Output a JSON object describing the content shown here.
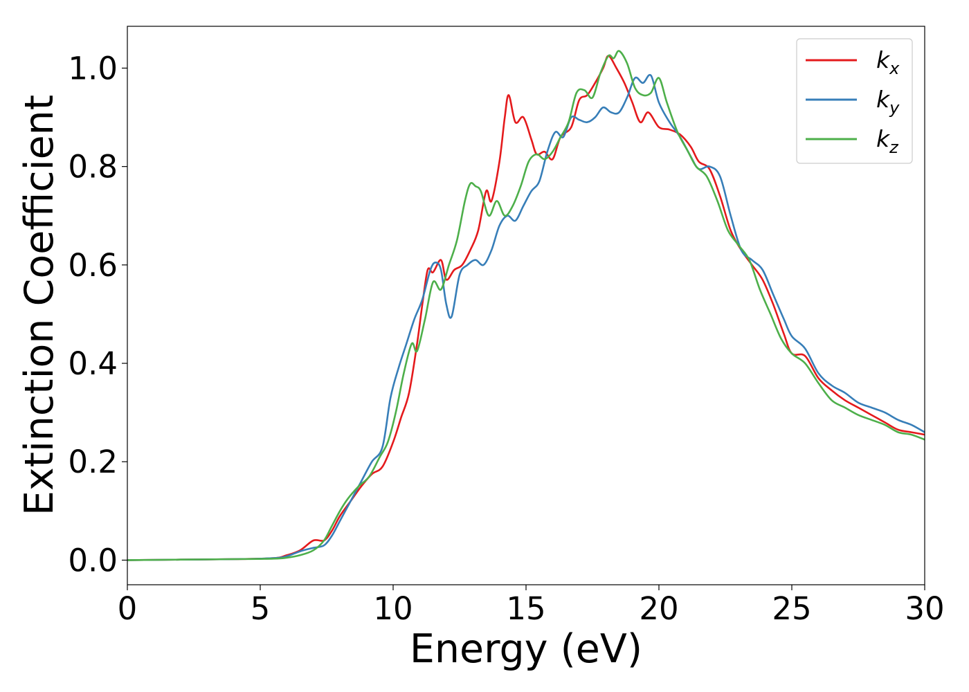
{
  "chart_data": {
    "type": "line",
    "title": "",
    "xlabel": "Energy (eV)",
    "ylabel": "Extinction Coefficient",
    "xlim": [
      0,
      30
    ],
    "ylim": [
      -0.05,
      1.085
    ],
    "xticks": [
      0,
      5,
      10,
      15,
      20,
      25,
      30
    ],
    "xtick_labels": [
      "0",
      "5",
      "10",
      "15",
      "20",
      "25",
      "30"
    ],
    "yticks": [
      0.0,
      0.2,
      0.4,
      0.6,
      0.8,
      1.0
    ],
    "ytick_labels": [
      "0.0",
      "0.2",
      "0.4",
      "0.6",
      "0.8",
      "1.0"
    ],
    "grid": false,
    "legend_position": "top-right",
    "series": [
      {
        "name": "kx",
        "label_base": "k",
        "label_sub": "x",
        "color": "#e41a1c",
        "points": [
          [
            0,
            0
          ],
          [
            2,
            0.001
          ],
          [
            4,
            0.002
          ],
          [
            5.5,
            0.004
          ],
          [
            6,
            0.01
          ],
          [
            6.5,
            0.02
          ],
          [
            7,
            0.04
          ],
          [
            7.4,
            0.04
          ],
          [
            7.7,
            0.06
          ],
          [
            8,
            0.09
          ],
          [
            8.4,
            0.12
          ],
          [
            8.8,
            0.15
          ],
          [
            9.2,
            0.175
          ],
          [
            9.6,
            0.19
          ],
          [
            10,
            0.24
          ],
          [
            10.3,
            0.29
          ],
          [
            10.6,
            0.34
          ],
          [
            10.9,
            0.44
          ],
          [
            11.1,
            0.52
          ],
          [
            11.3,
            0.59
          ],
          [
            11.5,
            0.585
          ],
          [
            11.8,
            0.61
          ],
          [
            12,
            0.57
          ],
          [
            12.3,
            0.59
          ],
          [
            12.6,
            0.6
          ],
          [
            12.9,
            0.63
          ],
          [
            13.2,
            0.67
          ],
          [
            13.5,
            0.75
          ],
          [
            13.7,
            0.73
          ],
          [
            14,
            0.81
          ],
          [
            14.2,
            0.9
          ],
          [
            14.35,
            0.945
          ],
          [
            14.6,
            0.89
          ],
          [
            14.9,
            0.9
          ],
          [
            15.2,
            0.855
          ],
          [
            15.4,
            0.825
          ],
          [
            15.7,
            0.83
          ],
          [
            16,
            0.815
          ],
          [
            16.3,
            0.86
          ],
          [
            16.7,
            0.88
          ],
          [
            17,
            0.935
          ],
          [
            17.3,
            0.945
          ],
          [
            17.6,
            0.97
          ],
          [
            17.9,
            1.0
          ],
          [
            18.1,
            1.025
          ],
          [
            18.4,
            1.0
          ],
          [
            18.7,
            0.97
          ],
          [
            19,
            0.93
          ],
          [
            19.3,
            0.89
          ],
          [
            19.6,
            0.91
          ],
          [
            20,
            0.88
          ],
          [
            20.4,
            0.875
          ],
          [
            20.8,
            0.865
          ],
          [
            21.2,
            0.84
          ],
          [
            21.5,
            0.81
          ],
          [
            21.9,
            0.795
          ],
          [
            22.3,
            0.74
          ],
          [
            22.7,
            0.67
          ],
          [
            23.1,
            0.63
          ],
          [
            23.5,
            0.6
          ],
          [
            23.9,
            0.57
          ],
          [
            24.3,
            0.52
          ],
          [
            24.7,
            0.46
          ],
          [
            25,
            0.42
          ],
          [
            25.5,
            0.415
          ],
          [
            26,
            0.37
          ],
          [
            26.5,
            0.345
          ],
          [
            27,
            0.325
          ],
          [
            27.5,
            0.31
          ],
          [
            28,
            0.295
          ],
          [
            28.5,
            0.28
          ],
          [
            29,
            0.265
          ],
          [
            29.5,
            0.26
          ],
          [
            30,
            0.255
          ]
        ]
      },
      {
        "name": "ky",
        "label_base": "k",
        "label_sub": "y",
        "color": "#377eb8",
        "points": [
          [
            0,
            0
          ],
          [
            2,
            0.001
          ],
          [
            4,
            0.002
          ],
          [
            5.5,
            0.004
          ],
          [
            6,
            0.008
          ],
          [
            6.5,
            0.018
          ],
          [
            7,
            0.025
          ],
          [
            7.4,
            0.03
          ],
          [
            7.7,
            0.05
          ],
          [
            8,
            0.08
          ],
          [
            8.4,
            0.12
          ],
          [
            8.8,
            0.16
          ],
          [
            9.2,
            0.2
          ],
          [
            9.6,
            0.23
          ],
          [
            9.9,
            0.33
          ],
          [
            10.2,
            0.39
          ],
          [
            10.5,
            0.44
          ],
          [
            10.8,
            0.49
          ],
          [
            11.1,
            0.53
          ],
          [
            11.4,
            0.59
          ],
          [
            11.6,
            0.605
          ],
          [
            11.8,
            0.59
          ],
          [
            12,
            0.52
          ],
          [
            12.2,
            0.495
          ],
          [
            12.5,
            0.58
          ],
          [
            12.8,
            0.6
          ],
          [
            13.1,
            0.61
          ],
          [
            13.4,
            0.6
          ],
          [
            13.7,
            0.63
          ],
          [
            14,
            0.68
          ],
          [
            14.3,
            0.7
          ],
          [
            14.6,
            0.69
          ],
          [
            14.9,
            0.72
          ],
          [
            15.2,
            0.75
          ],
          [
            15.5,
            0.77
          ],
          [
            15.8,
            0.83
          ],
          [
            16.1,
            0.87
          ],
          [
            16.4,
            0.86
          ],
          [
            16.7,
            0.9
          ],
          [
            17,
            0.895
          ],
          [
            17.3,
            0.89
          ],
          [
            17.6,
            0.9
          ],
          [
            17.9,
            0.92
          ],
          [
            18.2,
            0.91
          ],
          [
            18.5,
            0.91
          ],
          [
            18.8,
            0.94
          ],
          [
            19.1,
            0.98
          ],
          [
            19.4,
            0.97
          ],
          [
            19.7,
            0.985
          ],
          [
            20,
            0.93
          ],
          [
            20.4,
            0.89
          ],
          [
            20.8,
            0.86
          ],
          [
            21.2,
            0.82
          ],
          [
            21.5,
            0.795
          ],
          [
            21.9,
            0.8
          ],
          [
            22.3,
            0.78
          ],
          [
            22.7,
            0.7
          ],
          [
            23.1,
            0.63
          ],
          [
            23.5,
            0.61
          ],
          [
            23.9,
            0.59
          ],
          [
            24.3,
            0.54
          ],
          [
            24.7,
            0.49
          ],
          [
            25,
            0.455
          ],
          [
            25.5,
            0.43
          ],
          [
            26,
            0.38
          ],
          [
            26.5,
            0.355
          ],
          [
            27,
            0.34
          ],
          [
            27.5,
            0.32
          ],
          [
            28,
            0.31
          ],
          [
            28.5,
            0.3
          ],
          [
            29,
            0.285
          ],
          [
            29.5,
            0.275
          ],
          [
            30,
            0.26
          ]
        ]
      },
      {
        "name": "kz",
        "label_base": "k",
        "label_sub": "z",
        "color": "#4daf4a",
        "points": [
          [
            0,
            0
          ],
          [
            2,
            0.001
          ],
          [
            4,
            0.002
          ],
          [
            5.5,
            0.003
          ],
          [
            6,
            0.005
          ],
          [
            6.5,
            0.01
          ],
          [
            7,
            0.02
          ],
          [
            7.4,
            0.04
          ],
          [
            7.7,
            0.07
          ],
          [
            8,
            0.1
          ],
          [
            8.3,
            0.125
          ],
          [
            8.7,
            0.15
          ],
          [
            9.1,
            0.17
          ],
          [
            9.5,
            0.21
          ],
          [
            9.8,
            0.24
          ],
          [
            10.1,
            0.3
          ],
          [
            10.4,
            0.38
          ],
          [
            10.7,
            0.44
          ],
          [
            10.9,
            0.425
          ],
          [
            11.2,
            0.49
          ],
          [
            11.5,
            0.565
          ],
          [
            11.8,
            0.55
          ],
          [
            12.1,
            0.6
          ],
          [
            12.4,
            0.65
          ],
          [
            12.7,
            0.73
          ],
          [
            12.9,
            0.765
          ],
          [
            13.1,
            0.76
          ],
          [
            13.3,
            0.75
          ],
          [
            13.6,
            0.7
          ],
          [
            13.9,
            0.73
          ],
          [
            14.2,
            0.7
          ],
          [
            14.5,
            0.72
          ],
          [
            14.8,
            0.76
          ],
          [
            15.1,
            0.81
          ],
          [
            15.4,
            0.825
          ],
          [
            15.7,
            0.815
          ],
          [
            16,
            0.83
          ],
          [
            16.3,
            0.86
          ],
          [
            16.6,
            0.89
          ],
          [
            16.9,
            0.95
          ],
          [
            17.2,
            0.955
          ],
          [
            17.5,
            0.94
          ],
          [
            17.8,
            0.99
          ],
          [
            18.1,
            1.025
          ],
          [
            18.3,
            1.02
          ],
          [
            18.5,
            1.035
          ],
          [
            18.8,
            1.01
          ],
          [
            19.1,
            0.96
          ],
          [
            19.4,
            0.945
          ],
          [
            19.7,
            0.95
          ],
          [
            20,
            0.98
          ],
          [
            20.3,
            0.93
          ],
          [
            20.7,
            0.87
          ],
          [
            21.1,
            0.83
          ],
          [
            21.4,
            0.8
          ],
          [
            21.8,
            0.78
          ],
          [
            22.2,
            0.73
          ],
          [
            22.6,
            0.67
          ],
          [
            23,
            0.64
          ],
          [
            23.4,
            0.61
          ],
          [
            23.8,
            0.55
          ],
          [
            24.2,
            0.5
          ],
          [
            24.6,
            0.45
          ],
          [
            25,
            0.42
          ],
          [
            25.5,
            0.4
          ],
          [
            26,
            0.36
          ],
          [
            26.5,
            0.325
          ],
          [
            27,
            0.31
          ],
          [
            27.5,
            0.295
          ],
          [
            28,
            0.285
          ],
          [
            28.5,
            0.275
          ],
          [
            29,
            0.26
          ],
          [
            29.5,
            0.255
          ],
          [
            30,
            0.245
          ]
        ]
      }
    ]
  }
}
